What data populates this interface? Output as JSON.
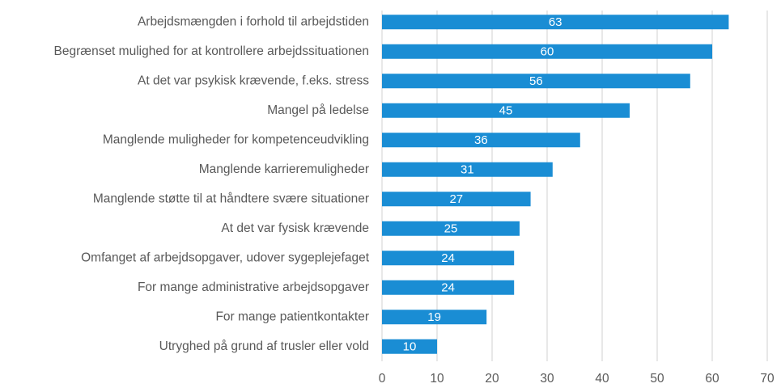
{
  "chart_data": {
    "type": "bar",
    "orientation": "horizontal",
    "categories": [
      "Arbejdsmængden i forhold til arbejdstiden",
      "Begrænset mulighed for at kontrollere arbejdssituationen",
      "At det var psykisk krævende, f.eks. stress",
      "Mangel på ledelse",
      "Manglende muligheder for kompetenceudvikling",
      "Manglende karrieremuligheder",
      "Manglende støtte til at håndtere svære situationer",
      "At det var fysisk krævende",
      "Omfanget af arbejdsopgaver, udover sygeplejefaget",
      "For mange administrative arbejdsopgaver",
      "For mange patientkontakter",
      "Utryghed på grund af trusler eller vold"
    ],
    "values": [
      63,
      60,
      56,
      45,
      36,
      31,
      27,
      25,
      24,
      24,
      19,
      10
    ],
    "color": "#1a8dd4",
    "xlim": [
      0,
      70
    ],
    "xticks": [
      0,
      10,
      20,
      30,
      40,
      50,
      60,
      70
    ],
    "grid": true
  }
}
